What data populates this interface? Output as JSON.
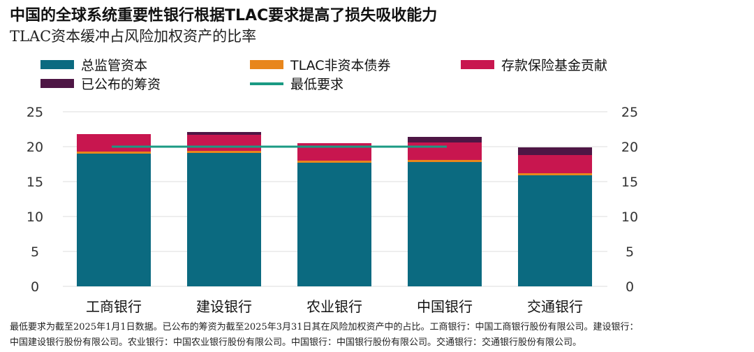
{
  "title": "中国的全球系统重要性银行根据TLAC要求提高了损失吸收能力",
  "subtitle": "TLAC资本缓冲占风险加权资产的比率",
  "colors": {
    "capital": "#0b6a80",
    "tlac_bonds": "#e8861c",
    "deposit_fund": "#c8164f",
    "announced": "#4e1645",
    "minimum": "#1a9a83",
    "grid": "#dcdcdc"
  },
  "chart_data": {
    "type": "bar",
    "stacked": true,
    "categories": [
      "工商银行",
      "建设银行",
      "农业银行",
      "中国银行",
      "交通银行"
    ],
    "series": [
      {
        "name": "总监管资本",
        "values": [
          19.0,
          19.1,
          17.7,
          17.8,
          15.9
        ],
        "color_key": "capital"
      },
      {
        "name": "TLAC非资本债券",
        "values": [
          0.3,
          0.3,
          0.3,
          0.3,
          0.3
        ],
        "color_key": "tlac_bonds"
      },
      {
        "name": "存款保险基金贡献",
        "values": [
          2.5,
          2.3,
          2.5,
          2.5,
          2.6
        ],
        "color_key": "deposit_fund"
      },
      {
        "name": "已公布的筹资",
        "values": [
          0.0,
          0.4,
          0.0,
          0.8,
          1.1
        ],
        "color_key": "announced"
      }
    ],
    "line": {
      "name": "最低要求",
      "value": 20,
      "color_key": "minimum"
    },
    "ylim": [
      0,
      25
    ],
    "yticks": [
      "0",
      "5",
      "10",
      "15",
      "20",
      "25"
    ],
    "grid": true,
    "legend_position": "top"
  },
  "footnote": {
    "line1": "最低要求为截至2025年1月1日数据。已公布的筹资为截至2025年3月31日其在风险加权资产中的占比。工商银行：中国工商银行股份有限公司。建设银行：",
    "line2": "中国建设银行股份有限公司。农业银行：中国农业银行股份有限公司。中国银行：中国银行股份有限公司。交通银行：交通银行股份有限公司。"
  }
}
